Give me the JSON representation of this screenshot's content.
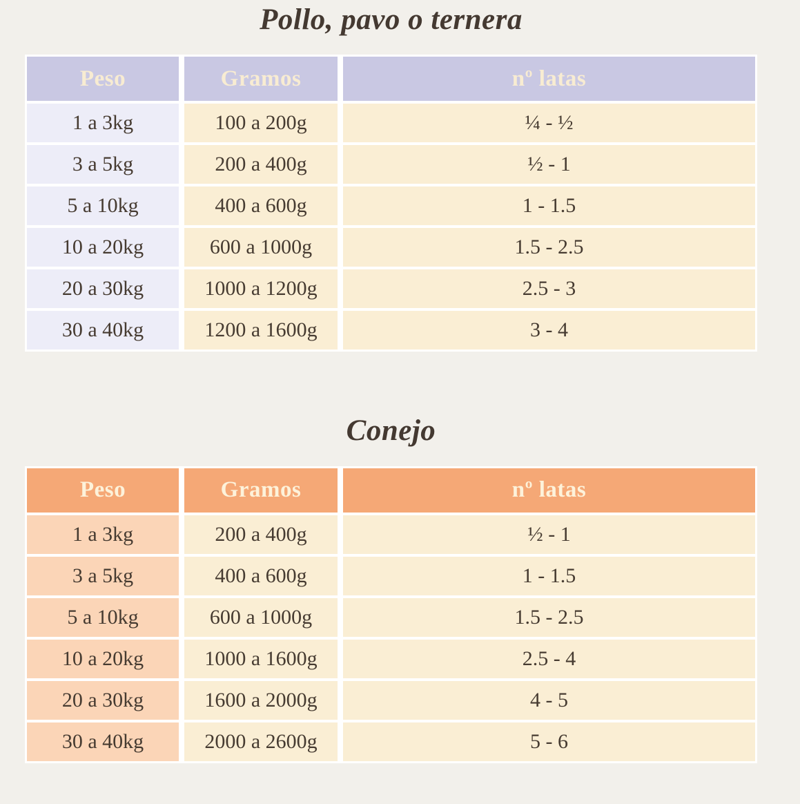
{
  "page": {
    "background": "#f2f0eb",
    "text_color": "#463b31",
    "gap_color": "#ffffff"
  },
  "tables": [
    {
      "title": "Pollo, pavo o ternera",
      "columns": [
        "Peso",
        "Gramos",
        "nº latas"
      ],
      "rows": [
        [
          "1 a 3kg",
          "100 a 200g",
          "¼ - ½"
        ],
        [
          "3 a 5kg",
          "200 a 400g",
          "½ - 1"
        ],
        [
          "5 a 10kg",
          "400 a 600g",
          "1 - 1.5"
        ],
        [
          "10 a 20kg",
          "600 a 1000g",
          "1.5 - 2.5"
        ],
        [
          "20 a 30kg",
          "1000 a 1200g",
          "2.5 - 3"
        ],
        [
          "30 a 40kg",
          "1200 a 1600g",
          "3 - 4"
        ]
      ],
      "theme": {
        "header_bg": "#c9c8e3",
        "header_text": "#f8ecd2",
        "col1_bg": "#ededf8",
        "cell_bg": "#faeed4"
      }
    },
    {
      "title": "Conejo",
      "columns": [
        "Peso",
        "Gramos",
        "nº latas"
      ],
      "rows": [
        [
          "1 a 3kg",
          "200 a 400g",
          "½ - 1"
        ],
        [
          "3 a 5kg",
          "400 a 600g",
          "1 - 1.5"
        ],
        [
          "5 a 10kg",
          "600 a 1000g",
          "1.5 - 2.5"
        ],
        [
          "10 a 20kg",
          "1000 a 1600g",
          "2.5 - 4"
        ],
        [
          "20 a 30kg",
          "1600 a 2000g",
          "4 - 5"
        ],
        [
          "30 a 40kg",
          "2000 a 2600g",
          "5 - 6"
        ]
      ],
      "theme": {
        "header_bg": "#f5a876",
        "header_text": "#fdf2da",
        "col1_bg": "#fbd5b7",
        "cell_bg": "#faeed4"
      }
    }
  ]
}
